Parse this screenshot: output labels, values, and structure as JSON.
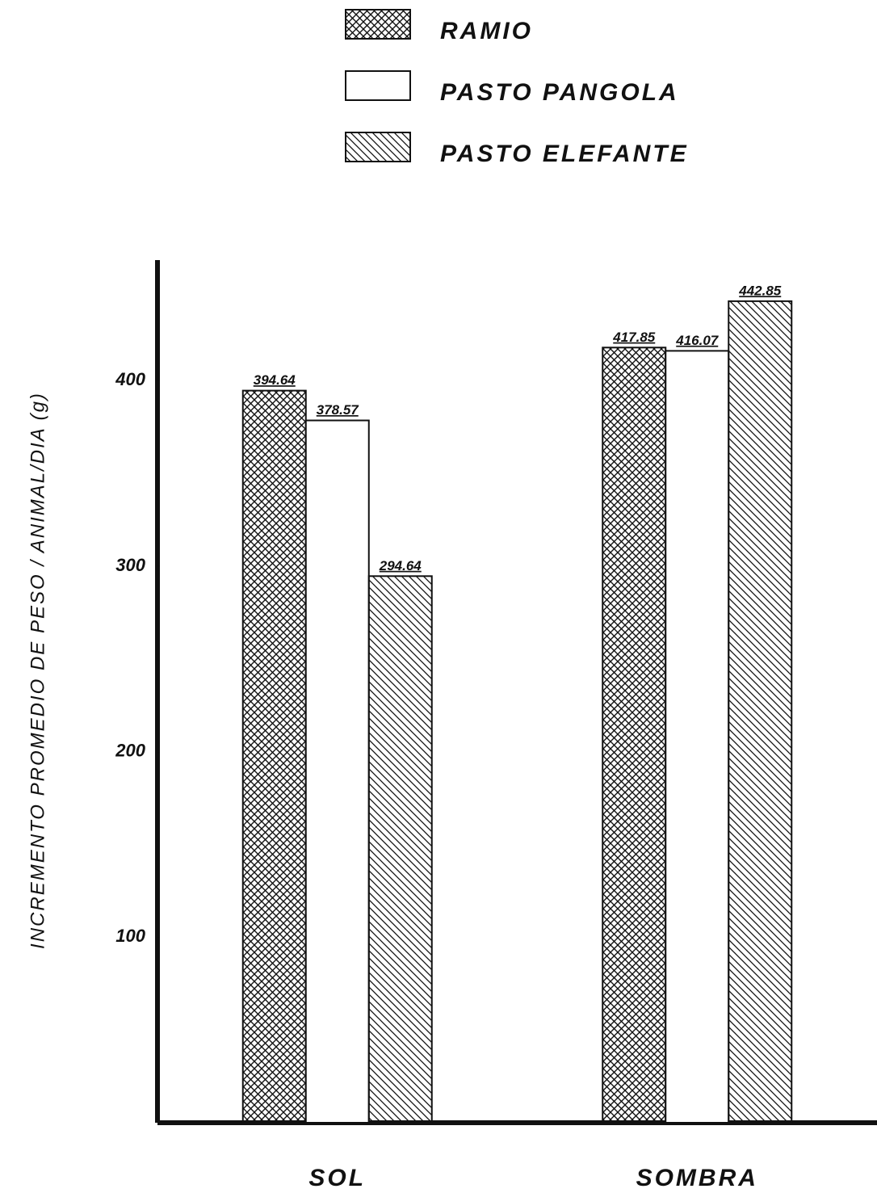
{
  "chart_data": {
    "type": "bar",
    "y_label": "INCREMENTO PROMEDIO DE PESO / ANIMAL/DIA (g)",
    "categories": [
      "SOL",
      "SOMBRA"
    ],
    "series": [
      {
        "name": "RAMIO",
        "color": "#111111",
        "pattern": "crosshatch",
        "values": [
          394.64,
          417.85
        ]
      },
      {
        "name": "PASTO PANGOLA",
        "color": "#111111",
        "pattern": "none",
        "values": [
          378.57,
          416.07
        ]
      },
      {
        "name": "PASTO ELEFANTE",
        "color": "#111111",
        "pattern": "hatch",
        "values": [
          294.64,
          442.85
        ]
      }
    ],
    "ylim": [
      0,
      465
    ],
    "yticks": [
      100,
      200,
      300,
      400
    ],
    "grid": false
  }
}
